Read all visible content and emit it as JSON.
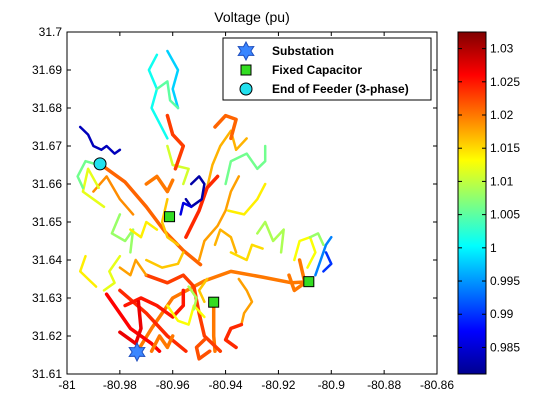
{
  "chart_data": {
    "type": "scatter",
    "title": "Voltage (pu)",
    "xlabel": "",
    "ylabel": "",
    "xlim": [
      -81,
      -80.86
    ],
    "ylim": [
      31.61,
      31.7
    ],
    "x_ticks": [
      "-81",
      "-80.98",
      "-80.96",
      "-80.94",
      "-80.92",
      "-80.9",
      "-80.88",
      "-80.86"
    ],
    "y_ticks": [
      "31.61",
      "31.62",
      "31.63",
      "31.64",
      "31.65",
      "31.66",
      "31.67",
      "31.68",
      "31.69",
      "31.7"
    ],
    "grid": false,
    "legend_position": "top-right",
    "colormap": "jet",
    "colorbar": {
      "label": "Voltage (pu)",
      "range": [
        0.981,
        1.0325
      ],
      "ticks": [
        "0.985",
        "0.99",
        "0.995",
        "1",
        "1.005",
        "1.01",
        "1.015",
        "1.02",
        "1.025",
        "1.03"
      ]
    },
    "markers": [
      {
        "name": "Substation",
        "marker": "hexagram",
        "color": "#3a86ff",
        "points": [
          [
            -80.9735,
            31.6158
          ]
        ]
      },
      {
        "name": "Fixed Capacitor",
        "marker": "square",
        "color": "#33dd22",
        "points": [
          [
            -80.9612,
            31.6514
          ],
          [
            -80.9445,
            31.6289
          ],
          [
            -80.9085,
            31.6343
          ]
        ]
      },
      {
        "name": "End of Feeder (3-phase)",
        "marker": "circle",
        "color": "#22e0ee",
        "points": [
          [
            -80.9875,
            31.6653
          ]
        ]
      }
    ],
    "feeder_lines": [
      {
        "v": 1.02,
        "points": [
          [
            -80.9735,
            31.6158
          ],
          [
            -80.968,
            31.622
          ],
          [
            -80.96,
            31.63
          ],
          [
            -80.948,
            31.6345
          ],
          [
            -80.938,
            31.637
          ],
          [
            -80.926,
            31.6355
          ],
          [
            -80.915,
            31.634
          ],
          [
            -80.9085,
            31.6343
          ]
        ]
      },
      {
        "v": 1.021,
        "points": [
          [
            -80.9495,
            31.6388
          ],
          [
            -80.956,
            31.6425
          ],
          [
            -80.963,
            31.6475
          ],
          [
            -80.97,
            31.654
          ],
          [
            -80.978,
            31.6605
          ],
          [
            -80.9875,
            31.6653
          ]
        ]
      },
      {
        "v": 1.02,
        "points": [
          [
            -80.9445,
            31.6289
          ],
          [
            -80.9445,
            31.62
          ],
          [
            -80.944,
            31.616
          ]
        ]
      },
      {
        "v": 1.024,
        "points": [
          [
            -80.98,
            31.632
          ],
          [
            -80.97,
            31.626
          ],
          [
            -80.962,
            31.62
          ],
          [
            -80.955,
            31.616
          ]
        ]
      },
      {
        "v": 1.026,
        "points": [
          [
            -80.985,
            31.631
          ],
          [
            -80.976,
            31.622
          ],
          [
            -80.968,
            31.618
          ],
          [
            -80.965,
            31.616
          ]
        ]
      },
      {
        "v": 1.025,
        "points": [
          [
            -80.978,
            31.628
          ],
          [
            -80.972,
            31.63
          ],
          [
            -80.966,
            31.628
          ],
          [
            -80.96,
            31.625
          ],
          [
            -80.956,
            31.628
          ],
          [
            -80.956,
            31.632
          ]
        ]
      },
      {
        "v": 1.023,
        "points": [
          [
            -80.97,
            31.636
          ],
          [
            -80.962,
            31.634
          ],
          [
            -80.956,
            31.636
          ],
          [
            -80.952,
            31.633
          ],
          [
            -80.95,
            31.626
          ],
          [
            -80.948,
            31.62
          ],
          [
            -80.942,
            31.616
          ]
        ]
      },
      {
        "v": 1.027,
        "points": [
          [
            -80.973,
            31.629
          ],
          [
            -80.972,
            31.622
          ],
          [
            -80.974,
            31.618
          ],
          [
            -80.98,
            31.621
          ]
        ]
      },
      {
        "v": 1.013,
        "points": [
          [
            -80.962,
            31.628
          ],
          [
            -80.958,
            31.624
          ],
          [
            -80.954,
            31.623
          ],
          [
            -80.952,
            31.628
          ],
          [
            -80.948,
            31.625
          ]
        ]
      },
      {
        "v": 1.02,
        "points": [
          [
            -80.96,
            31.62
          ],
          [
            -80.962,
            31.617
          ],
          [
            -80.965,
            31.62
          ],
          [
            -80.968,
            31.616
          ]
        ]
      },
      {
        "v": 1.016,
        "points": [
          [
            -80.97,
            31.64
          ],
          [
            -80.964,
            31.638
          ],
          [
            -80.958,
            31.639
          ],
          [
            -80.956,
            31.642
          ]
        ]
      },
      {
        "v": 1.018,
        "points": [
          [
            -80.95,
            31.64
          ],
          [
            -80.948,
            31.645
          ],
          [
            -80.943,
            31.649
          ],
          [
            -80.94,
            31.653
          ],
          [
            -80.938,
            31.658
          ],
          [
            -80.935,
            31.662
          ]
        ]
      },
      {
        "v": 1.014,
        "points": [
          [
            -80.939,
            31.653
          ],
          [
            -80.933,
            31.652
          ],
          [
            -80.928,
            31.656
          ],
          [
            -80.925,
            31.66
          ]
        ]
      },
      {
        "v": 1.009,
        "points": [
          [
            -80.928,
            31.647
          ],
          [
            -80.925,
            31.65
          ],
          [
            -80.922,
            31.645
          ],
          [
            -80.918,
            31.648
          ],
          [
            -80.919,
            31.642
          ]
        ]
      },
      {
        "v": 1.006,
        "points": [
          [
            -80.94,
            31.66
          ],
          [
            -80.938,
            31.666
          ],
          [
            -80.932,
            31.668
          ],
          [
            -80.928,
            31.664
          ],
          [
            -80.925,
            31.666
          ],
          [
            -80.925,
            31.67
          ]
        ]
      },
      {
        "v": 1.017,
        "points": [
          [
            -80.947,
            31.659
          ],
          [
            -80.945,
            31.665
          ],
          [
            -80.942,
            31.67
          ],
          [
            -80.938,
            31.674
          ],
          [
            -80.936,
            31.669
          ],
          [
            -80.932,
            31.672
          ]
        ]
      },
      {
        "v": 1.021,
        "points": [
          [
            -80.944,
            31.675
          ],
          [
            -80.94,
            31.678
          ],
          [
            -80.936,
            31.677
          ],
          [
            -80.938,
            31.672
          ]
        ]
      },
      {
        "v": 1.024,
        "points": [
          [
            -80.955,
            31.646
          ],
          [
            -80.95,
            31.653
          ],
          [
            -80.947,
            31.659
          ],
          [
            -80.943,
            31.662
          ]
        ]
      },
      {
        "v": 1.019,
        "points": [
          [
            -80.975,
            31.652
          ],
          [
            -80.98,
            31.656
          ],
          [
            -80.985,
            31.662
          ],
          [
            -80.99,
            31.658
          ]
        ]
      },
      {
        "v": 1.012,
        "points": [
          [
            -80.988,
            31.659
          ],
          [
            -80.992,
            31.664
          ],
          [
            -80.994,
            31.658
          ],
          [
            -80.99,
            31.656
          ],
          [
            -80.986,
            31.654
          ]
        ]
      },
      {
        "v": 1.006,
        "points": [
          [
            -80.994,
            31.659
          ],
          [
            -80.996,
            31.662
          ],
          [
            -80.993,
            31.666
          ],
          [
            -80.988,
            31.665
          ]
        ]
      },
      {
        "v": 0.984,
        "points": [
          [
            -80.995,
            31.675
          ],
          [
            -80.992,
            31.673
          ],
          [
            -80.99,
            31.67
          ],
          [
            -80.987,
            31.669
          ],
          [
            -80.985,
            31.67
          ],
          [
            -80.982,
            31.668
          ],
          [
            -80.98,
            31.669
          ]
        ]
      },
      {
        "v": 1.008,
        "points": [
          [
            -80.98,
            31.652
          ],
          [
            -80.983,
            31.647
          ],
          [
            -80.978,
            31.645
          ],
          [
            -80.975,
            31.648
          ],
          [
            -80.976,
            31.642
          ]
        ]
      },
      {
        "v": 1.014,
        "points": [
          [
            -80.976,
            31.648
          ],
          [
            -80.972,
            31.646
          ],
          [
            -80.97,
            31.65
          ],
          [
            -80.966,
            31.648
          ]
        ]
      },
      {
        "v": 1.02,
        "points": [
          [
            -80.97,
            31.66
          ],
          [
            -80.966,
            31.662
          ],
          [
            -80.962,
            31.658
          ],
          [
            -80.96,
            31.661
          ]
        ]
      },
      {
        "v": 1.016,
        "points": [
          [
            -80.962,
            31.656
          ],
          [
            -80.964,
            31.65
          ],
          [
            -80.962,
            31.646
          ],
          [
            -80.958,
            31.644
          ]
        ]
      },
      {
        "v": 1.011,
        "points": [
          [
            -80.956,
            31.66
          ],
          [
            -80.954,
            31.664
          ],
          [
            -80.96,
            31.665
          ],
          [
            -80.962,
            31.67
          ]
        ]
      },
      {
        "v": 1.023,
        "points": [
          [
            -80.959,
            31.664
          ],
          [
            -80.956,
            31.67
          ],
          [
            -80.96,
            31.673
          ],
          [
            -80.962,
            31.678
          ]
        ]
      },
      {
        "v": 1.001,
        "points": [
          [
            -80.962,
            31.672
          ],
          [
            -80.965,
            31.676
          ],
          [
            -80.968,
            31.68
          ],
          [
            -80.966,
            31.685
          ],
          [
            -80.969,
            31.69
          ],
          [
            -80.966,
            31.694
          ]
        ]
      },
      {
        "v": 0.998,
        "points": [
          [
            -80.958,
            31.68
          ],
          [
            -80.96,
            31.685
          ],
          [
            -80.958,
            31.69
          ],
          [
            -80.962,
            31.695
          ]
        ]
      },
      {
        "v": 1.005,
        "points": [
          [
            -80.966,
            31.685
          ],
          [
            -80.962,
            31.687
          ],
          [
            -80.961,
            31.682
          ],
          [
            -80.958,
            31.68
          ]
        ]
      },
      {
        "v": 0.983,
        "points": [
          [
            -80.953,
            31.66
          ],
          [
            -80.95,
            31.662
          ],
          [
            -80.948,
            31.66
          ],
          [
            -80.949,
            31.656
          ],
          [
            -80.953,
            31.654
          ],
          [
            -80.955,
            31.656
          ]
        ]
      },
      {
        "v": 0.986,
        "points": [
          [
            -80.953,
            31.654
          ],
          [
            -80.956,
            31.655
          ],
          [
            -80.957,
            31.652
          ]
        ]
      },
      {
        "v": 1.018,
        "points": [
          [
            -80.97,
            31.636
          ],
          [
            -80.974,
            31.64
          ],
          [
            -80.976,
            31.636
          ],
          [
            -80.98,
            31.638
          ]
        ]
      },
      {
        "v": 1.012,
        "points": [
          [
            -80.98,
            31.641
          ],
          [
            -80.984,
            31.637
          ],
          [
            -80.982,
            31.634
          ],
          [
            -80.986,
            31.632
          ]
        ]
      },
      {
        "v": 1.014,
        "points": [
          [
            -80.989,
            31.633
          ],
          [
            -80.992,
            31.635
          ],
          [
            -80.995,
            31.637
          ],
          [
            -80.993,
            31.641
          ]
        ]
      },
      {
        "v": 1.009,
        "points": [
          [
            -80.954,
            31.633
          ],
          [
            -80.951,
            31.63
          ],
          [
            -80.952,
            31.627
          ]
        ]
      },
      {
        "v": 1.016,
        "points": [
          [
            -80.947,
            31.635
          ],
          [
            -80.95,
            31.632
          ],
          [
            -80.948,
            31.629
          ]
        ]
      },
      {
        "v": 1.017,
        "points": [
          [
            -80.944,
            31.644
          ],
          [
            -80.942,
            31.648
          ],
          [
            -80.938,
            31.646
          ],
          [
            -80.936,
            31.642
          ]
        ]
      },
      {
        "v": 1.015,
        "points": [
          [
            -80.938,
            31.642
          ],
          [
            -80.932,
            31.64
          ],
          [
            -80.93,
            31.644
          ],
          [
            -80.926,
            31.643
          ]
        ]
      },
      {
        "v": 1.013,
        "points": [
          [
            -80.914,
            31.64
          ],
          [
            -80.912,
            31.645
          ],
          [
            -80.908,
            31.646
          ],
          [
            -80.906,
            31.642
          ],
          [
            -80.909,
            31.638
          ]
        ]
      },
      {
        "v": 1.008,
        "points": [
          [
            -80.908,
            31.646
          ],
          [
            -80.905,
            31.647
          ],
          [
            -80.903,
            31.644
          ]
        ]
      },
      {
        "v": 0.994,
        "points": [
          [
            -80.906,
            31.636
          ],
          [
            -80.904,
            31.64
          ],
          [
            -80.902,
            31.644
          ],
          [
            -80.9,
            31.646
          ]
        ]
      },
      {
        "v": 0.99,
        "points": [
          [
            -80.902,
            31.642
          ],
          [
            -80.9,
            31.639
          ],
          [
            -80.903,
            31.637
          ]
        ]
      },
      {
        "v": 1.02,
        "points": [
          [
            -80.912,
            31.64
          ],
          [
            -80.91,
            31.634
          ],
          [
            -80.914,
            31.632
          ],
          [
            -80.916,
            31.636
          ]
        ]
      },
      {
        "v": 1.018,
        "points": [
          [
            -80.935,
            31.635
          ],
          [
            -80.932,
            31.632
          ],
          [
            -80.93,
            31.629
          ],
          [
            -80.933,
            31.626
          ],
          [
            -80.934,
            31.623
          ]
        ]
      },
      {
        "v": 1.024,
        "points": [
          [
            -80.934,
            31.623
          ],
          [
            -80.938,
            31.622
          ],
          [
            -80.94,
            31.619
          ],
          [
            -80.936,
            31.617
          ]
        ]
      },
      {
        "v": 1.022,
        "points": [
          [
            -80.948,
            31.619
          ],
          [
            -80.951,
            31.617
          ],
          [
            -80.95,
            31.614
          ],
          [
            -80.946,
            31.616
          ]
        ]
      }
    ]
  }
}
